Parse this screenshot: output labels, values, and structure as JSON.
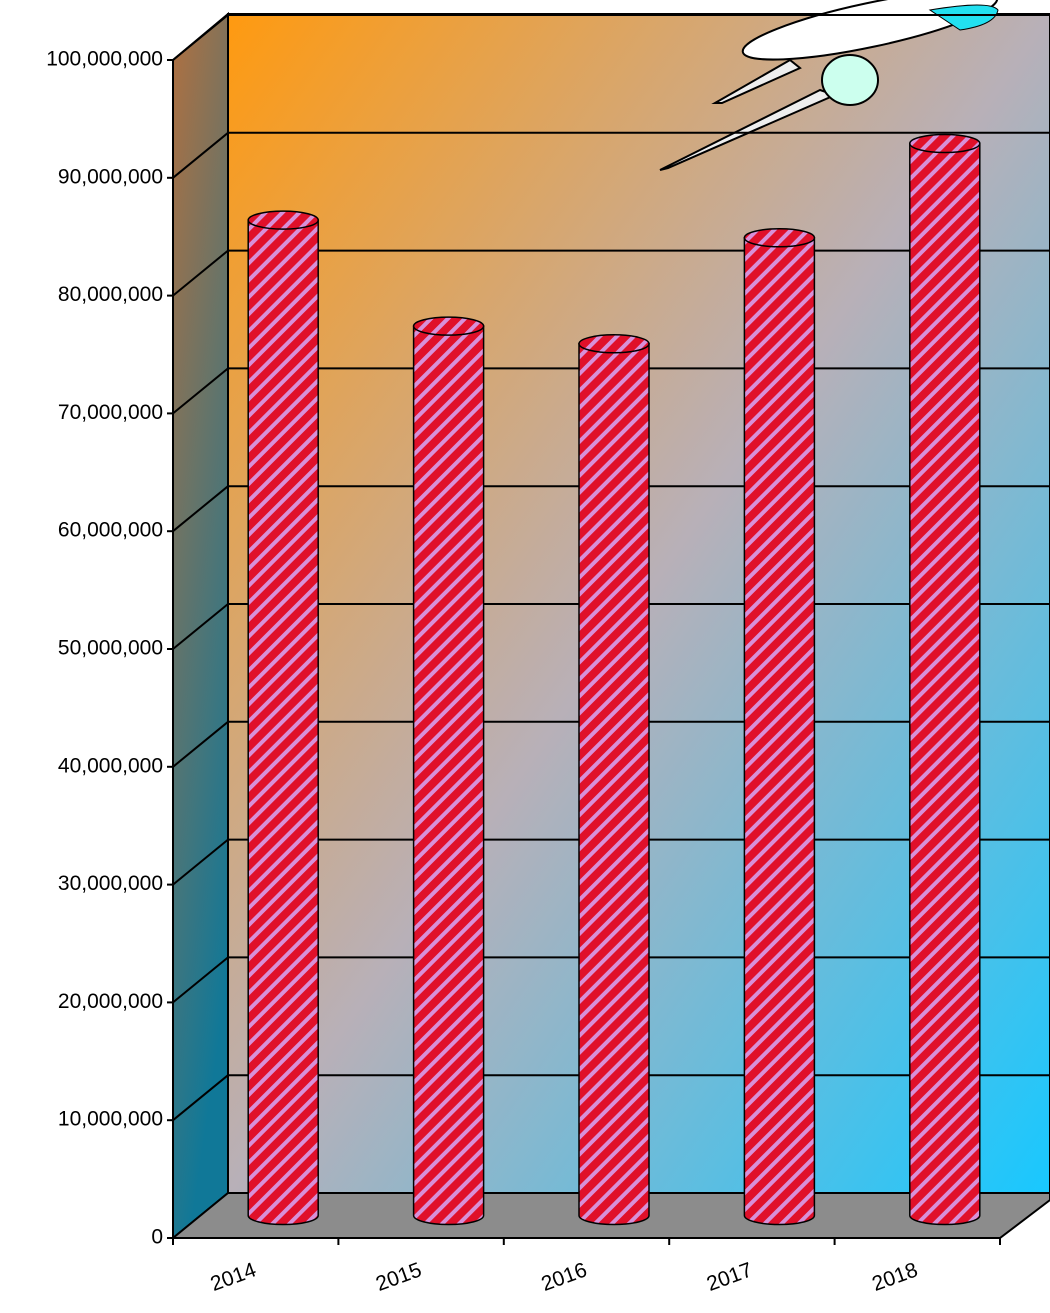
{
  "chart_data": {
    "type": "bar",
    "categories": [
      "2014",
      "2015",
      "2016",
      "2017",
      "2018"
    ],
    "values": [
      84500000,
      75500000,
      74000000,
      83000000,
      91000000
    ],
    "color": "#d8203a",
    "ylim": [
      0,
      100000000
    ],
    "yticks": [
      0,
      {
        "value": 10000000,
        "label": "10,000,000"
      },
      {
        "value": 20000000,
        "label": "20,000,000"
      },
      {
        "value": 30000000,
        "label": "30,000,000"
      },
      {
        "value": 40000000,
        "label": "40,000,000"
      },
      {
        "value": 50000000,
        "label": "50,000,000"
      },
      {
        "value": 60000000,
        "label": "60,000,000"
      },
      {
        "value": 70000000,
        "label": "70,000,000"
      },
      {
        "value": 80000000,
        "label": "80,000,000"
      },
      {
        "value": 90000000,
        "label": "90,000,000"
      },
      {
        "value": 100000000,
        "label": "100,000,000"
      }
    ],
    "grid": true
  }
}
